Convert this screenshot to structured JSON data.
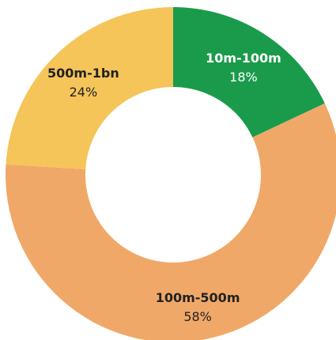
{
  "chart_data": {
    "type": "pie",
    "donut": true,
    "start_angle_deg": 0,
    "direction": "clockwise",
    "title": "",
    "slices": [
      {
        "label": "10m-100m",
        "value": 18,
        "value_label": "18%",
        "color": "#1a9b4b",
        "text_color": "#ffffff"
      },
      {
        "label": "100m-500m",
        "value": 58,
        "value_label": "58%",
        "color": "#f0a868",
        "text_color": "#222222"
      },
      {
        "label": "500m-1bn",
        "value": 24,
        "value_label": "24%",
        "color": "#f5c55a",
        "text_color": "#222222"
      }
    ]
  }
}
